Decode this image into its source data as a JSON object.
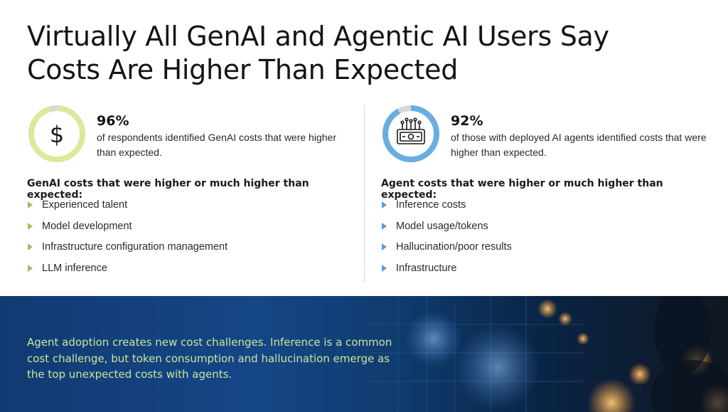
{
  "title": {
    "line1": "Virtually All GenAI and Agentic AI Users Say",
    "line2": "Costs Are Higher Than Expected"
  },
  "left": {
    "icon": "dollar-icon",
    "ring_color": "#dde89c",
    "percent_value": 0.96,
    "percent": "96%",
    "description": "of respondents identified GenAI costs that were higher than expected.",
    "heading": "GenAI costs that were higher or much higher than expected:",
    "bullet_color": "#9cc25a",
    "items": [
      "Experienced talent",
      "Model development",
      "Infrastructure configuration management",
      "LLM inference"
    ]
  },
  "right": {
    "icon": "money-chip-icon",
    "ring_color": "#6aaee0",
    "percent_value": 0.92,
    "percent": "92%",
    "description": "of those with deployed AI agents identified costs that were higher than expected.",
    "heading": "Agent costs that were higher or much higher than expected:",
    "bullet_color": "#5a9bd6",
    "items": [
      "Inference costs",
      "Model usage/tokens",
      "Hallucination/poor results",
      "Infrastructure"
    ]
  },
  "banner": {
    "text": "Agent adoption creates new cost challenges. Inference is a common cost challenge, but token consumption and hallucination emerge as the top unexpected costs with agents.",
    "text_color": "#c9e79c"
  }
}
